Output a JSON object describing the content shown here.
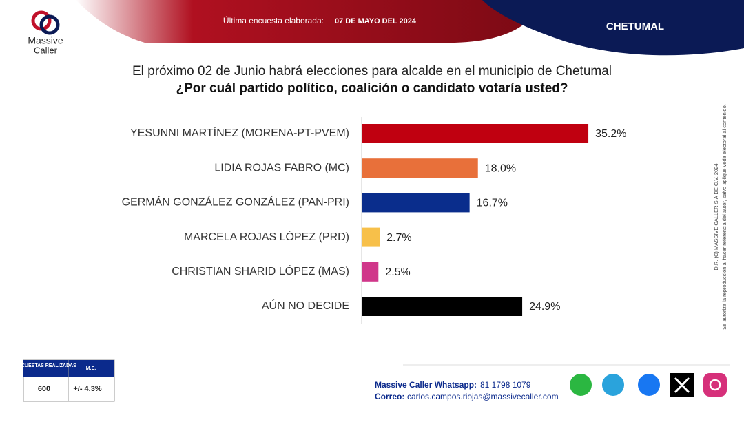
{
  "header": {
    "brand": [
      "Massive",
      "Caller"
    ],
    "survey_label": "Última encuesta elaborada:",
    "survey_date": "07 DE MAYO DEL 2024",
    "city": "CHETUMAL"
  },
  "chart_data": {
    "type": "hbar",
    "title": "El próximo 02 de Junio habrá elecciones para alcalde en el municipio de Chetumal",
    "subtitle": "¿Por cuál partido político, coalición o candidato votaría usted?",
    "categories": [
      "YESUNNI MARTÍNEZ (MORENA-PT-PVEM)",
      "LIDIA ROJAS FABRO (MC)",
      "GERMÁN GONZÁLEZ GONZÁLEZ (PAN-PRI)",
      "MARCELA ROJAS LÓPEZ (PRD)",
      "CHRISTIAN SHARID LÓPEZ (MAS)",
      "AÚN NO DECIDE"
    ],
    "values": [
      35.2,
      18.0,
      16.7,
      2.7,
      2.5,
      24.9
    ],
    "value_labels": [
      "35.2%",
      "18.0%",
      "16.7%",
      "2.7%",
      "2.5%",
      "24.9%"
    ],
    "colors": [
      "#c00010",
      "#e8703a",
      "#0a2d8c",
      "#f7c04a",
      "#d0378a",
      "#000000"
    ]
  },
  "side_note": [
    "Se autoriza la reproducción al hacer referencia del autor, salvo aplique veda electoral al contenido.",
    "D.R. (C) MASSIVE CALLER S.A DE C.V. 2024"
  ],
  "table": {
    "header": [
      "ENCUESTAS REALIZADAS",
      "M.E."
    ],
    "row": [
      "600",
      "+/- 4.3%"
    ]
  },
  "footer": {
    "whatsapp_label": "Massive Caller Whatsapp:",
    "whatsapp": "81 1798 1079",
    "email_label": "Correo:",
    "email": "carlos.campos.riojas@massivecaller.com"
  }
}
